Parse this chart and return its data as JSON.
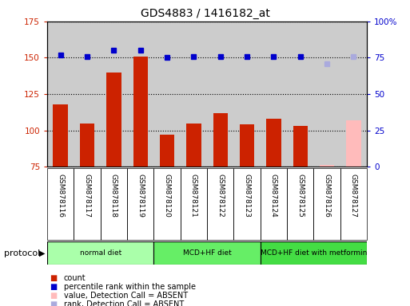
{
  "title": "GDS4883 / 1416182_at",
  "samples": [
    "GSM878116",
    "GSM878117",
    "GSM878118",
    "GSM878119",
    "GSM878120",
    "GSM878121",
    "GSM878122",
    "GSM878123",
    "GSM878124",
    "GSM878125",
    "GSM878126",
    "GSM878127"
  ],
  "bar_values": [
    118,
    105,
    140,
    151,
    97,
    105,
    112,
    104,
    108,
    103,
    76,
    107
  ],
  "bar_colors": [
    "#cc2200",
    "#cc2200",
    "#cc2200",
    "#cc2200",
    "#cc2200",
    "#cc2200",
    "#cc2200",
    "#cc2200",
    "#cc2200",
    "#cc2200",
    "#ffbbbb",
    "#ffbbbb"
  ],
  "percentile_values": [
    77,
    76,
    80,
    80,
    75,
    76,
    76,
    76,
    76,
    76,
    71,
    76
  ],
  "percentile_colors": [
    "#0000cc",
    "#0000cc",
    "#0000cc",
    "#0000cc",
    "#0000cc",
    "#0000cc",
    "#0000cc",
    "#0000cc",
    "#0000cc",
    "#0000cc",
    "#aaaadd",
    "#aaaadd"
  ],
  "ylim_left": [
    75,
    175
  ],
  "ylim_right": [
    0,
    100
  ],
  "yticks_left": [
    75,
    100,
    125,
    150,
    175
  ],
  "yticks_right": [
    0,
    25,
    50,
    75,
    100
  ],
  "yticklabels_right": [
    "0",
    "25",
    "50",
    "75",
    "100%"
  ],
  "protocols": [
    {
      "label": "normal diet",
      "start": 0,
      "end": 4,
      "color": "#aaffaa"
    },
    {
      "label": "MCD+HF diet",
      "start": 4,
      "end": 8,
      "color": "#66ee66"
    },
    {
      "label": "MCD+HF diet with metformin",
      "start": 8,
      "end": 12,
      "color": "#44dd44"
    }
  ],
  "legend": [
    {
      "label": "count",
      "color": "#cc2200"
    },
    {
      "label": "percentile rank within the sample",
      "color": "#0000cc"
    },
    {
      "label": "value, Detection Call = ABSENT",
      "color": "#ffbbbb"
    },
    {
      "label": "rank, Detection Call = ABSENT",
      "color": "#aaaadd"
    }
  ],
  "protocol_label": "protocol",
  "bar_width": 0.55,
  "bg_color": "#cccccc",
  "title_fontsize": 10,
  "tick_fontsize": 7.5
}
